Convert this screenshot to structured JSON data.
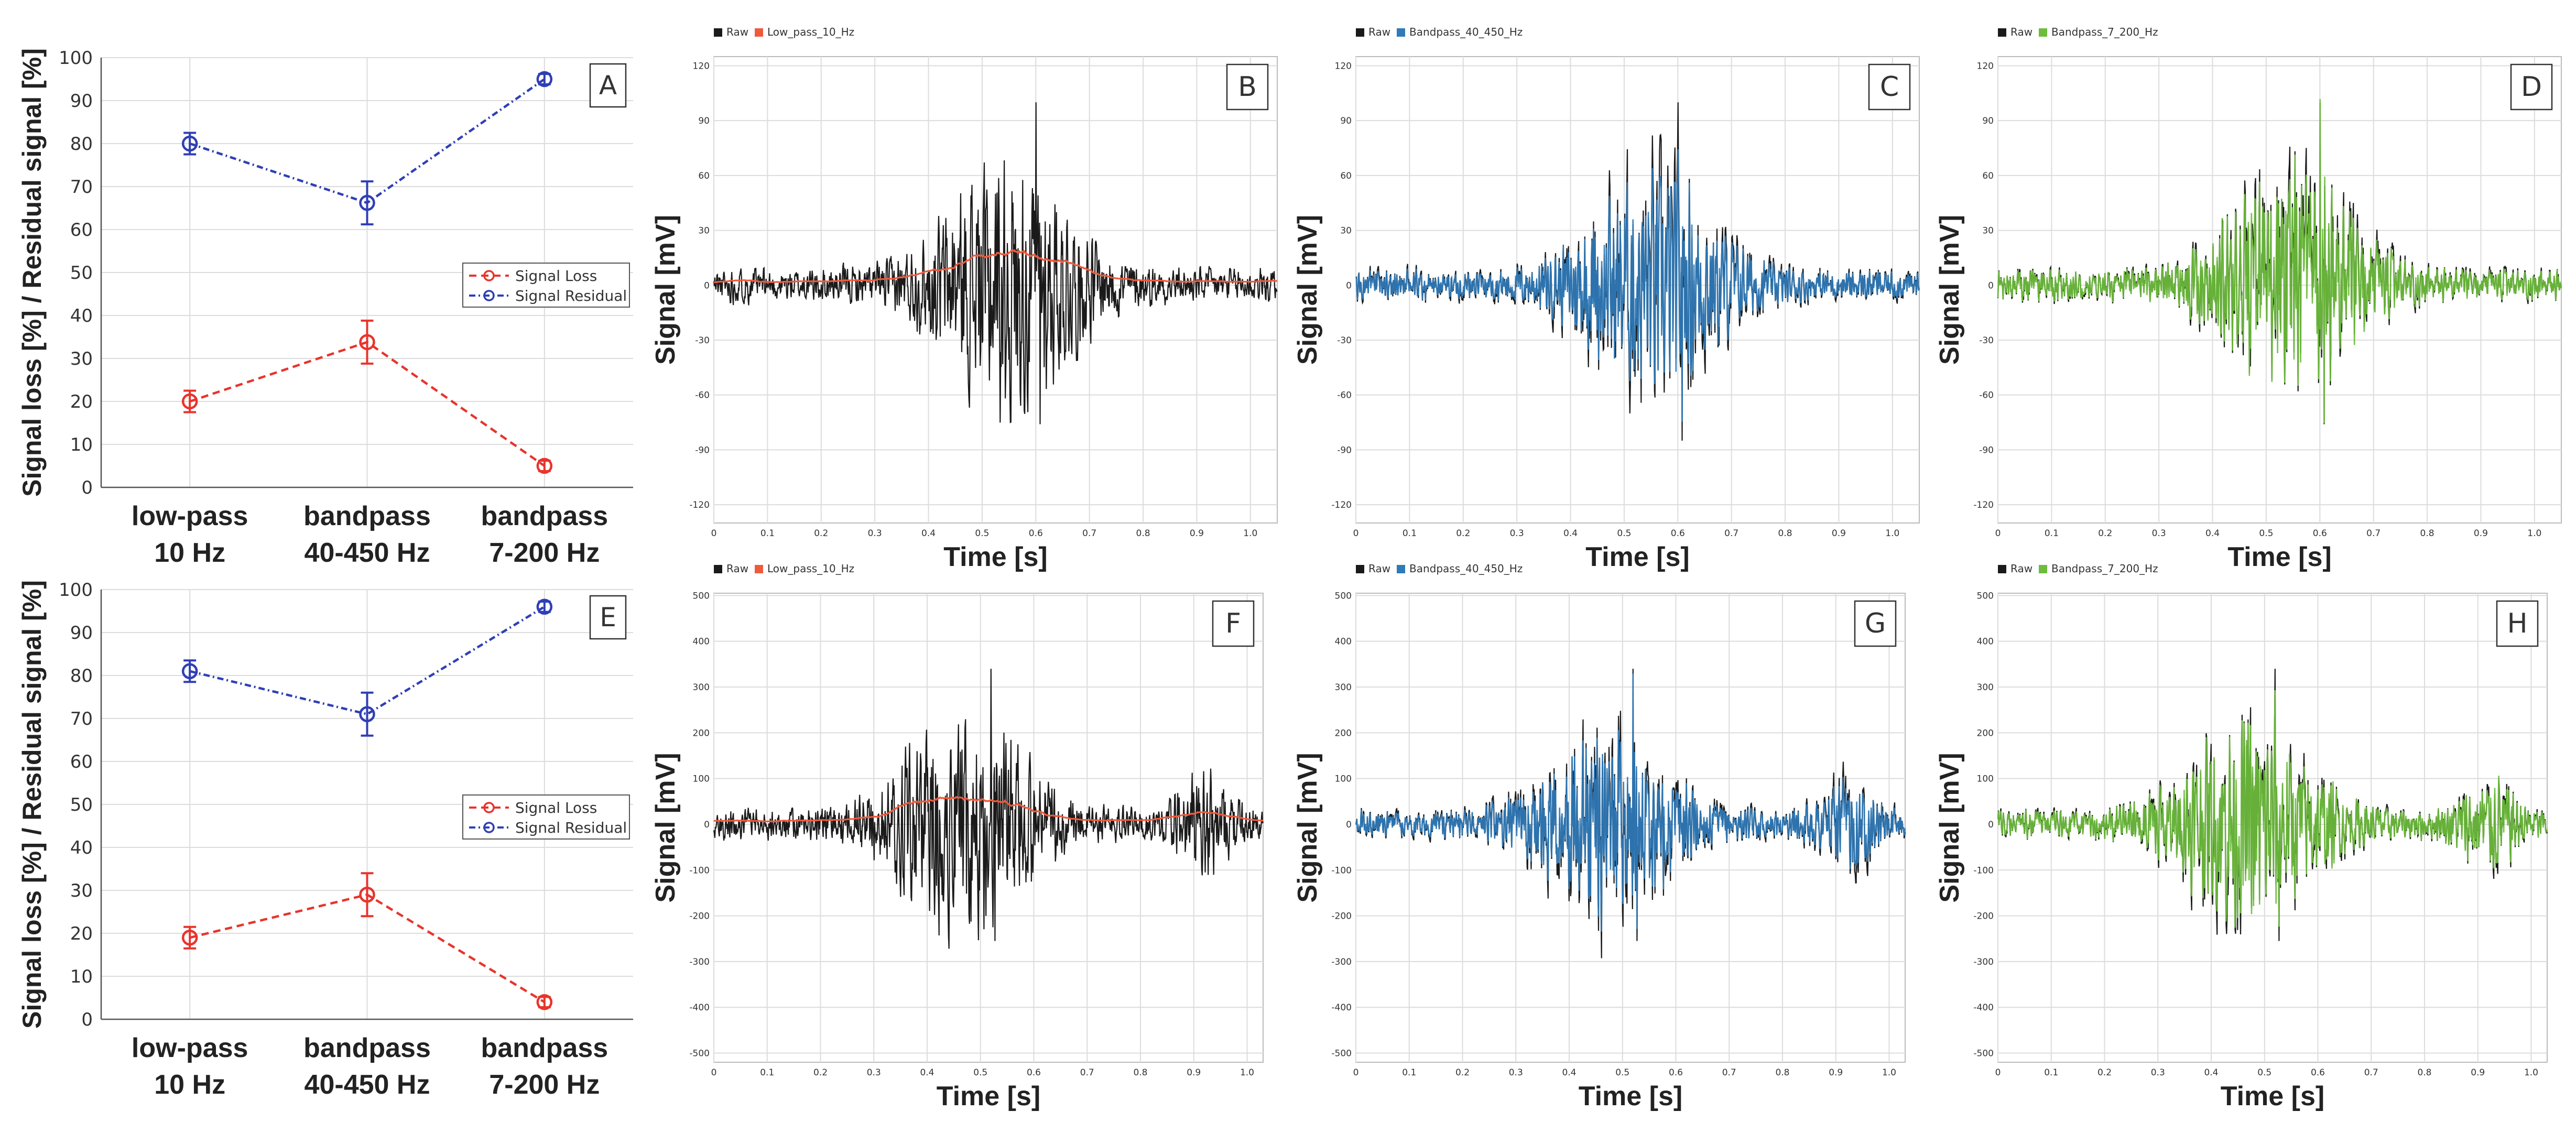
{
  "colors": {
    "loss": "#e8342c",
    "residual": "#2f3fb5",
    "raw": "#1a1a1a",
    "lowpass": "#ef5a3c",
    "bandpass_40_450": "#2f7ab8",
    "bandpass_7_200": "#6cbd3c"
  },
  "chart_data": [
    {
      "id": "A",
      "type": "line",
      "panel_label": "A",
      "categories": [
        "low-pass\n10 Hz",
        "bandpass\n40-450 Hz",
        "bandpass\n7-200 Hz"
      ],
      "category_lines": [
        [
          "low-pass",
          "10 Hz"
        ],
        [
          "bandpass",
          "40-450 Hz"
        ],
        [
          "bandpass",
          "7-200 Hz"
        ]
      ],
      "series": [
        {
          "name": "Signal Loss",
          "values": [
            20,
            33.8,
            5
          ],
          "errors": [
            2.5,
            5,
            1.2
          ]
        },
        {
          "name": "Signal Residual",
          "values": [
            80,
            66.2,
            95
          ],
          "errors": [
            2.5,
            5,
            1.2
          ]
        }
      ],
      "ylabel": "Signal loss [%] / Residual signal [%]",
      "ylim": [
        0,
        100
      ],
      "yticks": [
        "0",
        "10",
        "20",
        "30",
        "40",
        "50",
        "60",
        "70",
        "80",
        "90",
        "100"
      ],
      "legend": "center-right"
    },
    {
      "id": "B",
      "type": "line",
      "panel_label": "B",
      "legend_labels": [
        "Raw",
        "Low_pass_10_Hz"
      ],
      "filter": "lowpass",
      "xlabel": "Time [s]",
      "ylabel": "Signal [mV]",
      "xlim": [
        0,
        1.05
      ],
      "ylim": [
        -130,
        125
      ],
      "xticks": [
        "0",
        "0.1",
        "0.2",
        "0.3",
        "0.4",
        "0.5",
        "0.6",
        "0.7",
        "0.8",
        "0.9",
        "1.0"
      ],
      "yticks": [
        "-120",
        "-90",
        "-60",
        "-30",
        "0",
        "30",
        "60",
        "90",
        "120"
      ],
      "peak": 100,
      "trough": -76,
      "peak_time": 0.6
    },
    {
      "id": "C",
      "type": "line",
      "panel_label": "C",
      "legend_labels": [
        "Raw",
        "Bandpass_40_450_Hz"
      ],
      "filter": "bandpass_40_450",
      "xlabel": "Time [s]",
      "ylabel": "Signal [mV]",
      "xlim": [
        0,
        1.05
      ],
      "ylim": [
        -130,
        125
      ],
      "xticks": [
        "0",
        "0.1",
        "0.2",
        "0.3",
        "0.4",
        "0.5",
        "0.6",
        "0.7",
        "0.8",
        "0.9",
        "1.0"
      ],
      "yticks": [
        "-120",
        "-90",
        "-60",
        "-30",
        "0",
        "30",
        "60",
        "90",
        "120"
      ],
      "peak": 100,
      "trough": -85,
      "peak_time": 0.6
    },
    {
      "id": "D",
      "type": "line",
      "panel_label": "D",
      "legend_labels": [
        "Raw",
        "Bandpass_7_200_Hz"
      ],
      "filter": "bandpass_7_200",
      "xlabel": "Time [s]",
      "ylabel": "Signal [mV]",
      "xlim": [
        0,
        1.05
      ],
      "ylim": [
        -130,
        125
      ],
      "xticks": [
        "0",
        "0.1",
        "0.2",
        "0.3",
        "0.4",
        "0.5",
        "0.6",
        "0.7",
        "0.8",
        "0.9",
        "1.0"
      ],
      "yticks": [
        "-120",
        "-90",
        "-60",
        "-30",
        "0",
        "30",
        "60",
        "90",
        "120"
      ],
      "peak": 100,
      "trough": -76,
      "peak_time": 0.6
    },
    {
      "id": "E",
      "type": "line",
      "panel_label": "E",
      "categories": [
        "low-pass\n10 Hz",
        "bandpass\n40-450 Hz",
        "bandpass\n7-200 Hz"
      ],
      "category_lines": [
        [
          "low-pass",
          "10 Hz"
        ],
        [
          "bandpass",
          "40-450 Hz"
        ],
        [
          "bandpass",
          "7-200 Hz"
        ]
      ],
      "series": [
        {
          "name": "Signal Loss",
          "values": [
            19,
            29,
            4
          ],
          "errors": [
            2.5,
            5,
            1.2
          ]
        },
        {
          "name": "Signal Residual",
          "values": [
            81,
            71,
            96
          ],
          "errors": [
            2.5,
            5,
            1.2
          ]
        }
      ],
      "ylabel": "Signal loss [%] / Residual signal [%]",
      "ylim": [
        0,
        100
      ],
      "yticks": [
        "0",
        "10",
        "20",
        "30",
        "40",
        "50",
        "60",
        "70",
        "80",
        "90",
        "100"
      ],
      "legend": "center-right"
    },
    {
      "id": "F",
      "type": "line",
      "panel_label": "F",
      "legend_labels": [
        "Raw",
        "Low_pass_10_Hz"
      ],
      "filter": "lowpass",
      "xlabel": "Time [s]",
      "ylabel": "Signal [mV]",
      "xlim": [
        0,
        1.03
      ],
      "ylim": [
        -520,
        505
      ],
      "xticks": [
        "0",
        "0.1",
        "0.2",
        "0.3",
        "0.4",
        "0.5",
        "0.6",
        "0.7",
        "0.8",
        "0.9",
        "1.0"
      ],
      "yticks": [
        "-500",
        "-400",
        "-300",
        "-200",
        "-100",
        "0",
        "100",
        "200",
        "300",
        "400",
        "500"
      ],
      "peak": 340,
      "trough": -255,
      "peak_time": 0.52
    },
    {
      "id": "G",
      "type": "line",
      "panel_label": "G",
      "legend_labels": [
        "Raw",
        "Bandpass_40_450_Hz"
      ],
      "filter": "bandpass_40_450",
      "xlabel": "Time [s]",
      "ylabel": "Signal [mV]",
      "xlim": [
        0,
        1.03
      ],
      "ylim": [
        -520,
        505
      ],
      "xticks": [
        "0",
        "0.1",
        "0.2",
        "0.3",
        "0.4",
        "0.5",
        "0.6",
        "0.7",
        "0.8",
        "0.9",
        "1.0"
      ],
      "yticks": [
        "-500",
        "-400",
        "-300",
        "-200",
        "-100",
        "0",
        "100",
        "200",
        "300",
        "400",
        "500"
      ],
      "peak": 340,
      "trough": -255,
      "peak_time": 0.52
    },
    {
      "id": "H",
      "type": "line",
      "panel_label": "H",
      "legend_labels": [
        "Raw",
        "Bandpass_7_200_Hz"
      ],
      "filter": "bandpass_7_200",
      "xlabel": "Time [s]",
      "ylabel": "Signal [mV]",
      "xlim": [
        0,
        1.03
      ],
      "ylim": [
        -520,
        505
      ],
      "xticks": [
        "0",
        "0.1",
        "0.2",
        "0.3",
        "0.4",
        "0.5",
        "0.6",
        "0.7",
        "0.8",
        "0.9",
        "1.0"
      ],
      "yticks": [
        "-500",
        "-400",
        "-300",
        "-200",
        "-100",
        "0",
        "100",
        "200",
        "300",
        "400",
        "500"
      ],
      "peak": 340,
      "trough": -255,
      "peak_time": 0.52
    }
  ]
}
